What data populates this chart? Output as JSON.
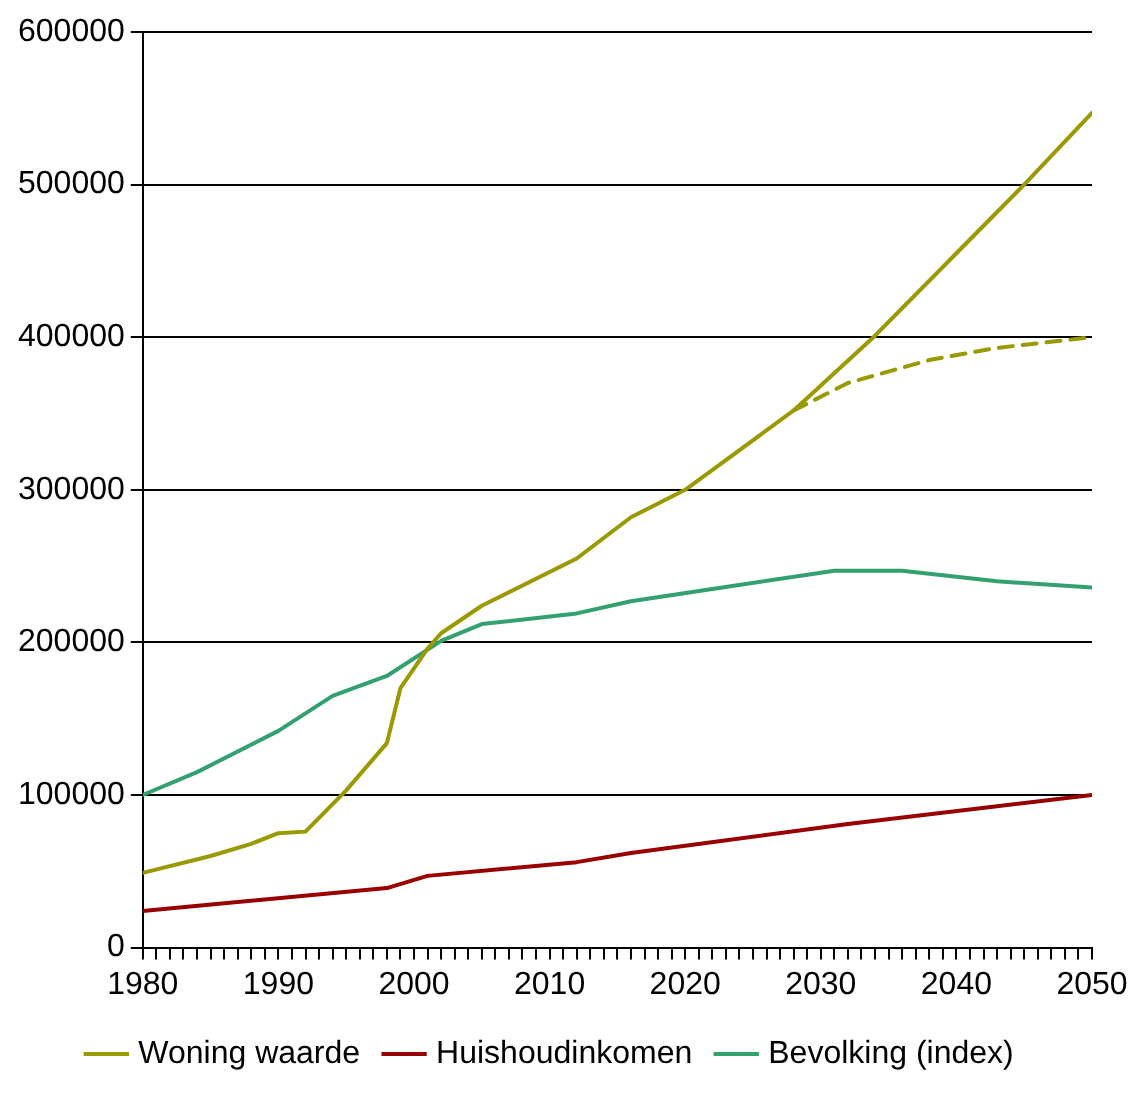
{
  "chart_data": {
    "type": "line",
    "xlim": [
      1980,
      2050
    ],
    "ylim": [
      0,
      600000
    ],
    "xticks": [
      1980,
      {
        "value": 1981,
        "label": null
      },
      {
        "value": 1982,
        "label": null
      },
      {
        "value": 1983,
        "label": null
      },
      {
        "value": 1984,
        "label": null
      },
      {
        "value": 1985,
        "label": null
      },
      {
        "value": 1986,
        "label": null
      },
      {
        "value": 1987,
        "label": null
      },
      {
        "value": 1988,
        "label": null
      },
      {
        "value": 1989,
        "label": null
      },
      1990,
      {
        "value": 1991,
        "label": null
      },
      {
        "value": 1992,
        "label": null
      },
      {
        "value": 1993,
        "label": null
      },
      {
        "value": 1994,
        "label": null
      },
      {
        "value": 1995,
        "label": null
      },
      {
        "value": 1996,
        "label": null
      },
      {
        "value": 1997,
        "label": null
      },
      {
        "value": 1998,
        "label": null
      },
      {
        "value": 1999,
        "label": null
      },
      2000,
      {
        "value": 2001,
        "label": null
      },
      {
        "value": 2002,
        "label": null
      },
      {
        "value": 2003,
        "label": null
      },
      {
        "value": 2004,
        "label": null
      },
      {
        "value": 2005,
        "label": null
      },
      {
        "value": 2006,
        "label": null
      },
      {
        "value": 2007,
        "label": null
      },
      {
        "value": 2008,
        "label": null
      },
      {
        "value": 2009,
        "label": null
      },
      2010,
      {
        "value": 2011,
        "label": null
      },
      {
        "value": 2012,
        "label": null
      },
      {
        "value": 2013,
        "label": null
      },
      {
        "value": 2014,
        "label": null
      },
      {
        "value": 2015,
        "label": null
      },
      {
        "value": 2016,
        "label": null
      },
      {
        "value": 2017,
        "label": null
      },
      {
        "value": 2018,
        "label": null
      },
      {
        "value": 2019,
        "label": null
      },
      2020,
      {
        "value": 2021,
        "label": null
      },
      {
        "value": 2022,
        "label": null
      },
      {
        "value": 2023,
        "label": null
      },
      {
        "value": 2024,
        "label": null
      },
      {
        "value": 2025,
        "label": null
      },
      {
        "value": 2026,
        "label": null
      },
      {
        "value": 2027,
        "label": null
      },
      {
        "value": 2028,
        "label": null
      },
      {
        "value": 2029,
        "label": null
      },
      2030,
      {
        "value": 2031,
        "label": null
      },
      {
        "value": 2032,
        "label": null
      },
      {
        "value": 2033,
        "label": null
      },
      {
        "value": 2034,
        "label": null
      },
      {
        "value": 2035,
        "label": null
      },
      {
        "value": 2036,
        "label": null
      },
      {
        "value": 2037,
        "label": null
      },
      {
        "value": 2038,
        "label": null
      },
      {
        "value": 2039,
        "label": null
      },
      2040,
      {
        "value": 2041,
        "label": null
      },
      {
        "value": 2042,
        "label": null
      },
      {
        "value": 2043,
        "label": null
      },
      {
        "value": 2044,
        "label": null
      },
      {
        "value": 2045,
        "label": null
      },
      {
        "value": 2046,
        "label": null
      },
      {
        "value": 2047,
        "label": null
      },
      {
        "value": 2048,
        "label": null
      },
      {
        "value": 2049,
        "label": null
      },
      2050
    ],
    "yticks": [
      0,
      100000,
      200000,
      300000,
      400000,
      500000,
      600000
    ],
    "grid": "y",
    "legend": "bottom",
    "line_style": "solid",
    "series": [
      {
        "name": "Woning waarde",
        "color": "#999900",
        "x": [
          1980,
          1985,
          1988,
          1990,
          1992,
          1995,
          1998,
          1999,
          2001,
          2002,
          2005,
          2012,
          2016,
          2020,
          2028,
          2034,
          2040,
          2045,
          2050
        ],
        "values": [
          49000,
          60000,
          68000,
          75000,
          76000,
          103000,
          134000,
          170000,
          196000,
          206000,
          224000,
          255000,
          282000,
          300000,
          352000,
          401000,
          455000,
          500000,
          547000
        ]
      },
      {
        "color": "#999900",
        "line_style": "dashed",
        "x": [
          2028,
          2032,
          2038,
          2043,
          2050
        ],
        "values": [
          352000,
          370000,
          385000,
          393000,
          400000
        ]
      },
      {
        "name": "Huishoudinkomen",
        "color": "#990000",
        "x": [
          1980,
          1998,
          2001,
          2012,
          2016,
          2032,
          2050
        ],
        "values": [
          24000,
          39000,
          47000,
          56000,
          62000,
          81000,
          100000
        ]
      },
      {
        "name": "Bevolking (index)",
        "color": "#33a070",
        "x": [
          1980,
          1984,
          1990,
          1994,
          1998,
          2002,
          2005,
          2012,
          2016,
          2022,
          2031,
          2036,
          2043,
          2050
        ],
        "values": [
          100000,
          115000,
          142000,
          165000,
          178000,
          201000,
          212000,
          219000,
          227000,
          235000,
          247000,
          247000,
          240000,
          236000
        ]
      }
    ]
  }
}
